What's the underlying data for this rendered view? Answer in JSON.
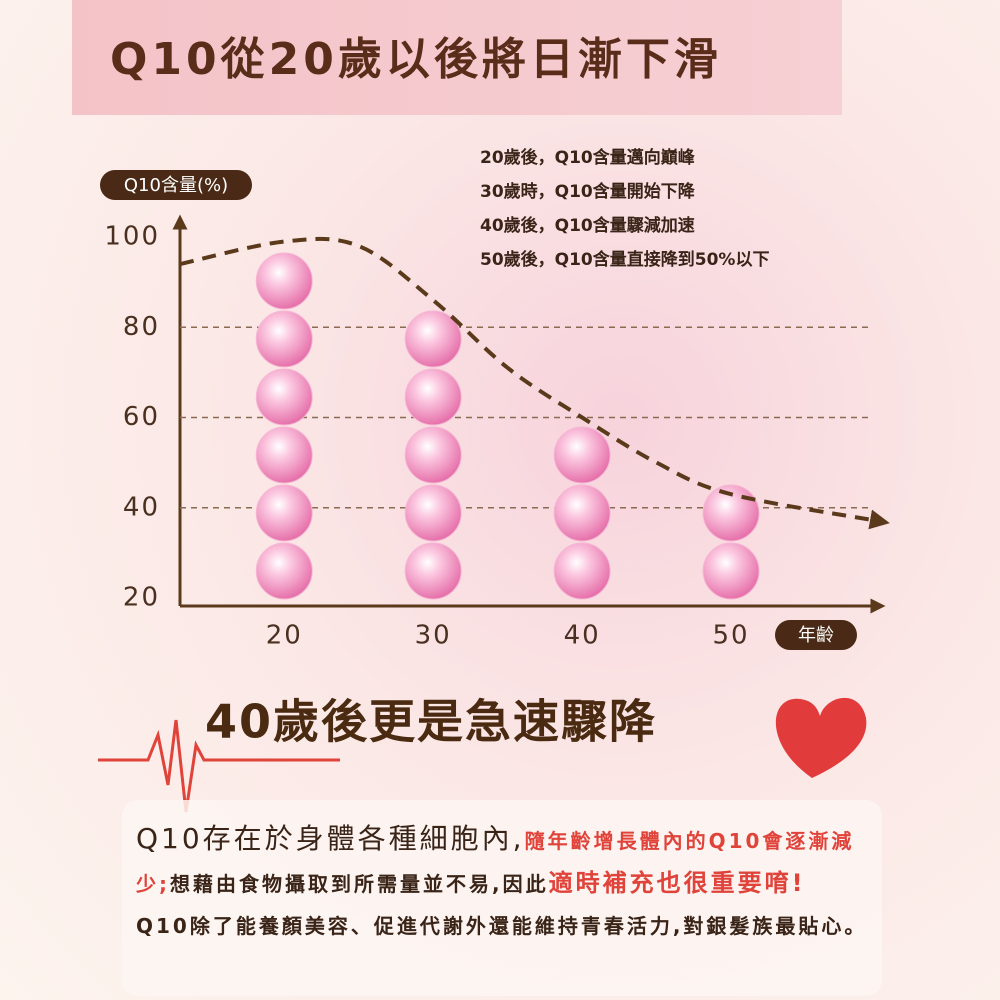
{
  "chart_data": {
    "type": "bar",
    "title": "Q10從20歲以後將日漸下滑",
    "y_label": "Q10含量(%)",
    "x_label": "年齡",
    "notes": [
      "20歲後，Q10含量邁向巔峰",
      "30歲時，Q10含量開始下降",
      "40歲後，Q10含量驟減加速",
      "50歲後，Q10含量直接降到50%以下"
    ],
    "x": [
      20,
      30,
      40,
      50
    ],
    "values": [
      97,
      82,
      57,
      44
    ],
    "color": "#f29ac6",
    "xlim": [
      13,
      60
    ],
    "xticks": [
      20,
      30,
      40,
      50
    ],
    "ylim": [
      20,
      100
    ],
    "yticks": [
      20,
      40,
      60,
      80,
      100
    ],
    "grid": true,
    "trend": {
      "type": "line",
      "color": "#5b3a1c",
      "x": [
        13,
        20,
        25,
        30,
        35,
        40,
        45,
        50,
        60
      ],
      "values": [
        94,
        99,
        98,
        86,
        71,
        60,
        50,
        43,
        37
      ]
    }
  },
  "headline": "40歲後更是急速驟降",
  "body": [
    "Q10存在於身體各種細胞內,",
    "隨年齡增長體內的Q10會逐漸減少;",
    "想藉由食物攝取到所需量並不易,因此",
    "適時補充也很重要唷!",
    "Q10除了能養顏美容、促進代謝外還能維持青春活力,對銀髮族最貼心。"
  ]
}
